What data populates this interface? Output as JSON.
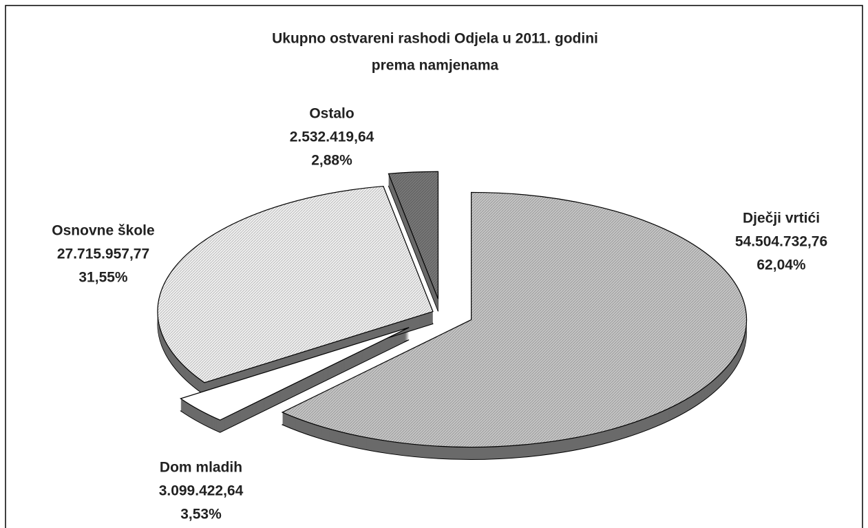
{
  "chart_data": {
    "type": "pie",
    "title": [
      "Ukupno ostvareni rashodi Odjela u 2011. godini",
      "prema namjenama"
    ],
    "categories": [
      "Dječji vrtići",
      "Dom mladih",
      "Osnovne škole",
      "Ostalo"
    ],
    "values": [
      54504732.76,
      3099422.64,
      27715957.77,
      2532419.64
    ],
    "value_labels": [
      "54.504.732,76",
      "3.099.422,64",
      "27.715.957,77",
      "2.532.419,64"
    ],
    "percentages": [
      62.04,
      3.53,
      31.55,
      2.88
    ],
    "percentage_labels": [
      "62,04%",
      "3,53%",
      "31,55%",
      "2,88%"
    ],
    "colors": [
      "#c4c4c4",
      "#ffffff",
      "#eeeeee",
      "#777777"
    ]
  }
}
